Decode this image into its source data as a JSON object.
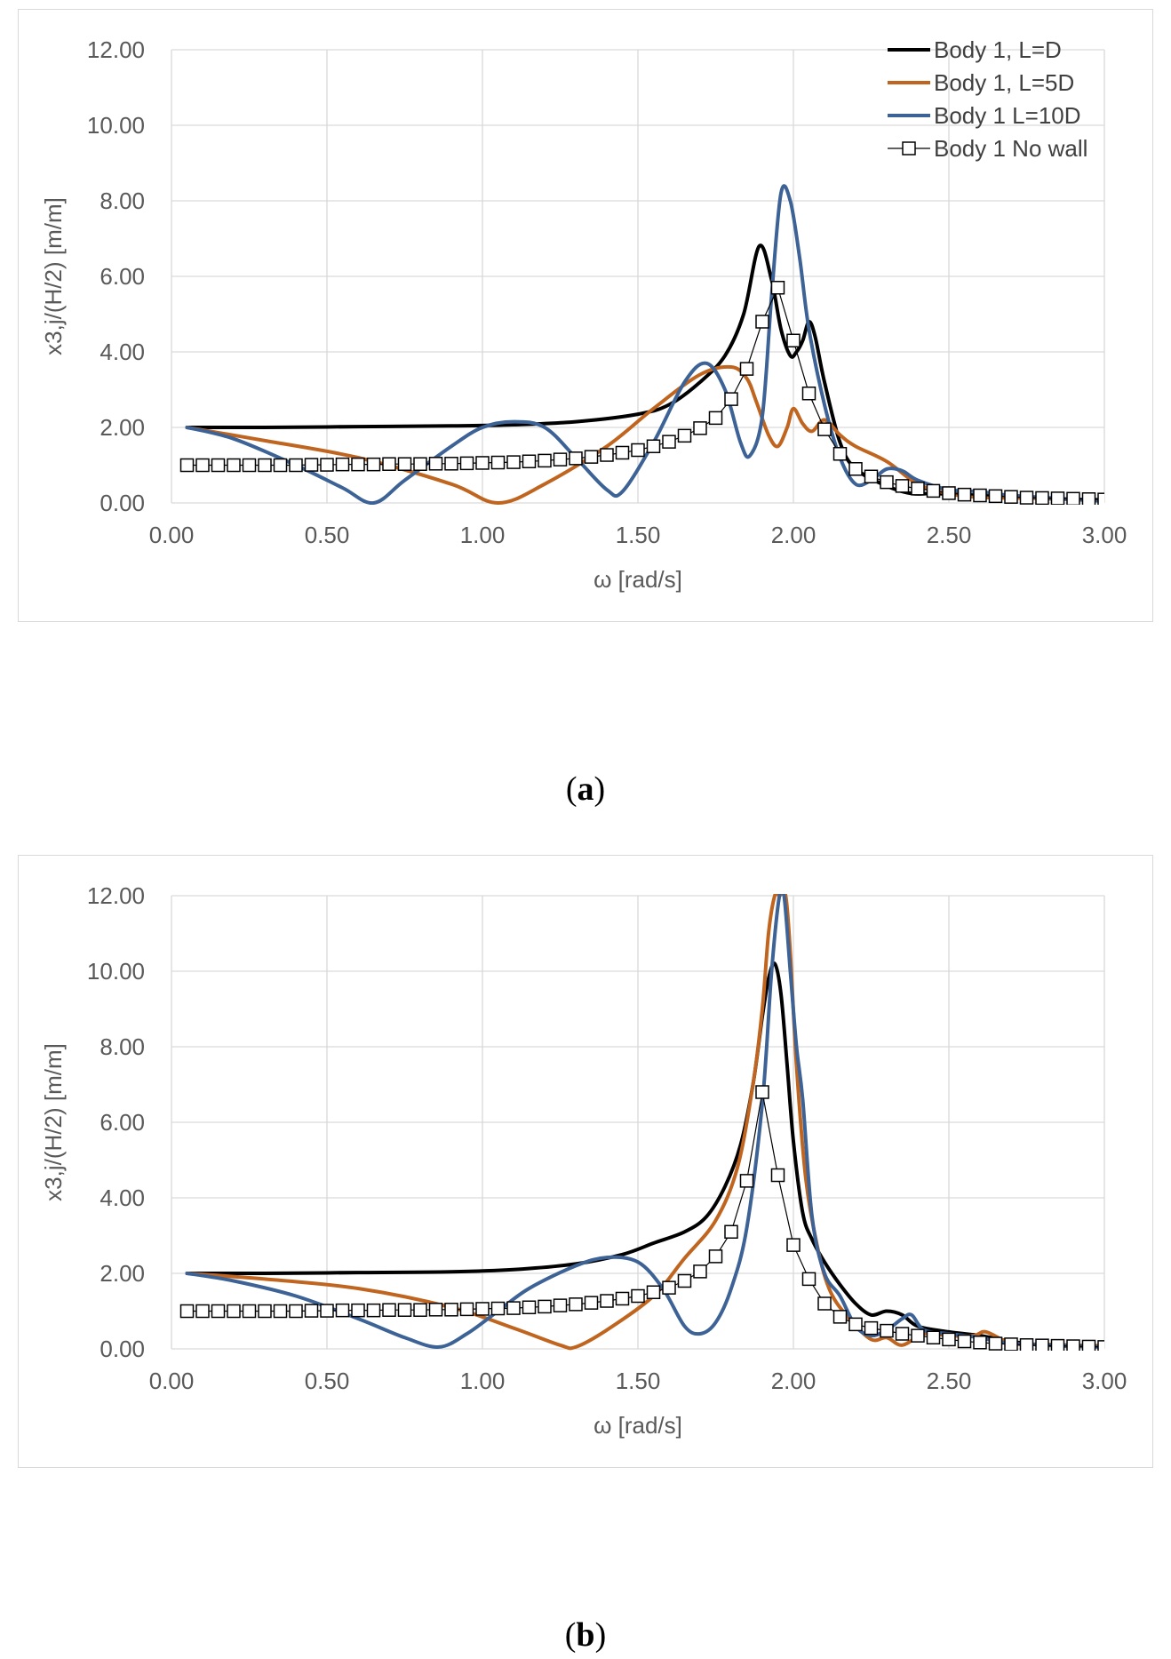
{
  "charts": [
    {
      "id": "a",
      "caption_open": "(",
      "caption_label": "a",
      "caption_close": ")",
      "chart_data": {
        "type": "line",
        "title": "",
        "xlabel": "ω  [rad/s]",
        "ylabel": "x3,j/(H/2)   [m/m]",
        "xlim": [
          0,
          3
        ],
        "ylim": [
          0,
          12
        ],
        "xticks": [
          "0.00",
          "0.50",
          "1.00",
          "1.50",
          "2.00",
          "2.50",
          "3.00"
        ],
        "yticks": [
          "0.00",
          "2.00",
          "4.00",
          "6.00",
          "8.00",
          "10.00",
          "12.00"
        ],
        "grid": true,
        "legend_position": "top-right",
        "series": [
          {
            "name": "Body 1, L=D",
            "color": "#000000",
            "marker": "none",
            "x": [
              0.05,
              0.3,
              0.6,
              0.9,
              1.1,
              1.3,
              1.5,
              1.6,
              1.7,
              1.78,
              1.84,
              1.89,
              1.93,
              1.96,
              1.99,
              2.01,
              2.03,
              2.05,
              2.07,
              2.1,
              2.15,
              2.2,
              2.3,
              2.38,
              2.45,
              2.6,
              2.8,
              3.0
            ],
            "y": [
              2.0,
              2.0,
              2.02,
              2.04,
              2.07,
              2.15,
              2.35,
              2.6,
              3.2,
              3.9,
              5.0,
              6.8,
              5.9,
              4.6,
              3.9,
              4.0,
              4.3,
              4.8,
              4.4,
              3.2,
              1.6,
              0.9,
              0.45,
              0.25,
              0.25,
              0.2,
              0.12,
              0.08
            ]
          },
          {
            "name": "Body 1, L=5D",
            "color": "#c0651f",
            "marker": "none",
            "x": [
              0.05,
              0.3,
              0.6,
              0.9,
              1.05,
              1.2,
              1.4,
              1.55,
              1.7,
              1.8,
              1.85,
              1.88,
              1.92,
              1.95,
              1.98,
              2.0,
              2.03,
              2.06,
              2.1,
              2.15,
              2.2,
              2.3,
              2.4,
              2.5,
              2.6,
              2.8,
              3.0
            ],
            "y": [
              2.0,
              1.65,
              1.2,
              0.5,
              0.0,
              0.5,
              1.5,
              2.5,
              3.4,
              3.6,
              3.3,
              2.7,
              1.8,
              1.5,
              2.0,
              2.5,
              2.1,
              1.9,
              2.2,
              1.8,
              1.5,
              1.1,
              0.5,
              0.25,
              0.15,
              0.12,
              0.05
            ]
          },
          {
            "name": "Body 1 L=10D",
            "color": "#3c6296",
            "marker": "none",
            "x": [
              0.05,
              0.2,
              0.4,
              0.55,
              0.65,
              0.75,
              0.9,
              1.0,
              1.1,
              1.2,
              1.3,
              1.4,
              1.45,
              1.55,
              1.65,
              1.72,
              1.78,
              1.83,
              1.86,
              1.9,
              1.93,
              1.96,
              1.99,
              2.02,
              2.05,
              2.1,
              2.15,
              2.2,
              2.25,
              2.3,
              2.35,
              2.4,
              2.5,
              2.6,
              2.7,
              3.0
            ],
            "y": [
              2.0,
              1.7,
              1.0,
              0.4,
              0.0,
              0.6,
              1.5,
              2.0,
              2.15,
              2.0,
              1.2,
              0.35,
              0.3,
              1.6,
              3.2,
              3.7,
              3.0,
              1.6,
              1.25,
              2.3,
              5.5,
              8.2,
              8.0,
              6.5,
              4.6,
              2.6,
              1.2,
              0.5,
              0.6,
              0.9,
              0.85,
              0.6,
              0.35,
              0.3,
              0.2,
              0.05
            ]
          },
          {
            "name": "Body 1 No wall",
            "color": "#000000",
            "marker": "square",
            "x": [
              0.05,
              0.1,
              0.15,
              0.2,
              0.25,
              0.3,
              0.35,
              0.4,
              0.45,
              0.5,
              0.55,
              0.6,
              0.65,
              0.7,
              0.75,
              0.8,
              0.85,
              0.9,
              0.95,
              1.0,
              1.05,
              1.1,
              1.15,
              1.2,
              1.25,
              1.3,
              1.35,
              1.4,
              1.45,
              1.5,
              1.55,
              1.6,
              1.65,
              1.7,
              1.75,
              1.8,
              1.85,
              1.9,
              1.95,
              2.0,
              2.05,
              2.1,
              2.15,
              2.2,
              2.25,
              2.3,
              2.35,
              2.4,
              2.45,
              2.5,
              2.55,
              2.6,
              2.65,
              2.7,
              2.75,
              2.8,
              2.85,
              2.9,
              2.95,
              3.0
            ],
            "y": [
              1.0,
              1.0,
              1.0,
              1.0,
              1.0,
              1.0,
              1.0,
              1.0,
              1.01,
              1.01,
              1.02,
              1.02,
              1.02,
              1.03,
              1.03,
              1.03,
              1.04,
              1.04,
              1.05,
              1.06,
              1.07,
              1.08,
              1.1,
              1.12,
              1.15,
              1.18,
              1.22,
              1.27,
              1.33,
              1.4,
              1.5,
              1.62,
              1.78,
              1.98,
              2.25,
              2.75,
              3.55,
              4.8,
              5.7,
              4.3,
              2.9,
              1.95,
              1.3,
              0.9,
              0.7,
              0.55,
              0.45,
              0.38,
              0.32,
              0.26,
              0.22,
              0.2,
              0.18,
              0.16,
              0.14,
              0.13,
              0.12,
              0.11,
              0.1,
              0.09
            ]
          }
        ]
      }
    },
    {
      "id": "b",
      "caption_open": "(",
      "caption_label": "b",
      "caption_close": ")",
      "chart_data": {
        "type": "line",
        "title": "",
        "xlabel": "ω  [rad/s]",
        "ylabel": "x3,j/(H/2)   [m/m]",
        "xlim": [
          0,
          3
        ],
        "ylim": [
          0,
          12
        ],
        "xticks": [
          "0.00",
          "0.50",
          "1.00",
          "1.50",
          "2.00",
          "2.50",
          "3.00"
        ],
        "yticks": [
          "0.00",
          "2.00",
          "4.00",
          "6.00",
          "8.00",
          "10.00",
          "12.00"
        ],
        "grid": true,
        "legend_position": "none",
        "series": [
          {
            "name": "Body 1, L=D",
            "color": "#000000",
            "marker": "none",
            "x": [
              0.05,
              0.3,
              0.6,
              0.9,
              1.1,
              1.3,
              1.45,
              1.55,
              1.65,
              1.72,
              1.78,
              1.83,
              1.87,
              1.9,
              1.92,
              1.94,
              1.96,
              1.98,
              2.0,
              2.03,
              2.06,
              2.1,
              2.15,
              2.2,
              2.25,
              2.3,
              2.35,
              2.4,
              2.5,
              2.6,
              2.7,
              2.8,
              3.0
            ],
            "y": [
              2.0,
              2.0,
              2.02,
              2.04,
              2.1,
              2.25,
              2.5,
              2.8,
              3.1,
              3.5,
              4.3,
              5.4,
              7.0,
              8.8,
              9.8,
              10.2,
              9.4,
              7.5,
              5.5,
              3.6,
              2.9,
              2.3,
              1.7,
              1.2,
              0.9,
              1.0,
              0.9,
              0.6,
              0.45,
              0.35,
              0.2,
              0.1,
              0.05
            ]
          },
          {
            "name": "Body 1, L=5D",
            "color": "#c0651f",
            "marker": "none",
            "x": [
              0.05,
              0.3,
              0.6,
              0.9,
              1.1,
              1.25,
              1.3,
              1.4,
              1.55,
              1.65,
              1.75,
              1.82,
              1.87,
              1.9,
              1.92,
              1.94,
              1.955,
              1.975,
              1.99,
              2.01,
              2.04,
              2.08,
              2.12,
              2.18,
              2.25,
              2.3,
              2.35,
              2.42,
              2.5,
              2.58,
              2.62,
              2.7,
              2.8,
              3.0
            ],
            "y": [
              2.0,
              1.85,
              1.6,
              1.1,
              0.55,
              0.1,
              0.05,
              0.5,
              1.4,
              2.4,
              3.4,
              4.8,
              7.0,
              9.0,
              11.0,
              12.0,
              12.0,
              12.0,
              10.5,
              7.5,
              4.5,
              2.6,
              1.5,
              0.8,
              0.25,
              0.3,
              0.1,
              0.4,
              0.35,
              0.35,
              0.45,
              0.15,
              0.12,
              0.08
            ]
          },
          {
            "name": "Body 1 L=10D",
            "color": "#3c6296",
            "marker": "none",
            "x": [
              0.05,
              0.2,
              0.4,
              0.6,
              0.75,
              0.86,
              0.95,
              1.05,
              1.15,
              1.3,
              1.4,
              1.5,
              1.58,
              1.65,
              1.7,
              1.75,
              1.8,
              1.85,
              1.9,
              1.93,
              1.955,
              1.97,
              1.99,
              2.01,
              2.03,
              2.06,
              2.1,
              2.15,
              2.2,
              2.25,
              2.3,
              2.35,
              2.38,
              2.42,
              2.5,
              2.6,
              2.7,
              3.0
            ],
            "y": [
              2.0,
              1.8,
              1.4,
              0.8,
              0.3,
              0.05,
              0.4,
              1.0,
              1.6,
              2.2,
              2.42,
              2.3,
              1.6,
              0.6,
              0.4,
              0.7,
              1.6,
              3.2,
              6.5,
              10.0,
              12.0,
              12.0,
              10.0,
              8.0,
              6.6,
              3.5,
              2.0,
              1.4,
              0.6,
              0.35,
              0.5,
              0.8,
              0.9,
              0.5,
              0.4,
              0.3,
              0.15,
              0.05
            ]
          },
          {
            "name": "Body 1 No wall",
            "color": "#000000",
            "marker": "square",
            "x": [
              0.05,
              0.1,
              0.15,
              0.2,
              0.25,
              0.3,
              0.35,
              0.4,
              0.45,
              0.5,
              0.55,
              0.6,
              0.65,
              0.7,
              0.75,
              0.8,
              0.85,
              0.9,
              0.95,
              1.0,
              1.05,
              1.1,
              1.15,
              1.2,
              1.25,
              1.3,
              1.35,
              1.4,
              1.45,
              1.5,
              1.55,
              1.6,
              1.65,
              1.7,
              1.75,
              1.8,
              1.85,
              1.9,
              1.95,
              2.0,
              2.05,
              2.1,
              2.15,
              2.2,
              2.25,
              2.3,
              2.35,
              2.4,
              2.45,
              2.5,
              2.55,
              2.6,
              2.65,
              2.7,
              2.75,
              2.8,
              2.85,
              2.9,
              2.95,
              3.0
            ],
            "y": [
              1.0,
              1.0,
              1.0,
              1.0,
              1.0,
              1.0,
              1.0,
              1.0,
              1.01,
              1.01,
              1.02,
              1.02,
              1.02,
              1.03,
              1.03,
              1.03,
              1.04,
              1.04,
              1.05,
              1.06,
              1.07,
              1.08,
              1.1,
              1.12,
              1.15,
              1.18,
              1.22,
              1.27,
              1.33,
              1.4,
              1.5,
              1.62,
              1.8,
              2.05,
              2.45,
              3.1,
              4.45,
              6.8,
              4.6,
              2.75,
              1.85,
              1.2,
              0.85,
              0.65,
              0.55,
              0.48,
              0.4,
              0.35,
              0.3,
              0.25,
              0.2,
              0.17,
              0.14,
              0.12,
              0.1,
              0.09,
              0.08,
              0.07,
              0.06,
              0.05
            ]
          }
        ]
      }
    }
  ]
}
